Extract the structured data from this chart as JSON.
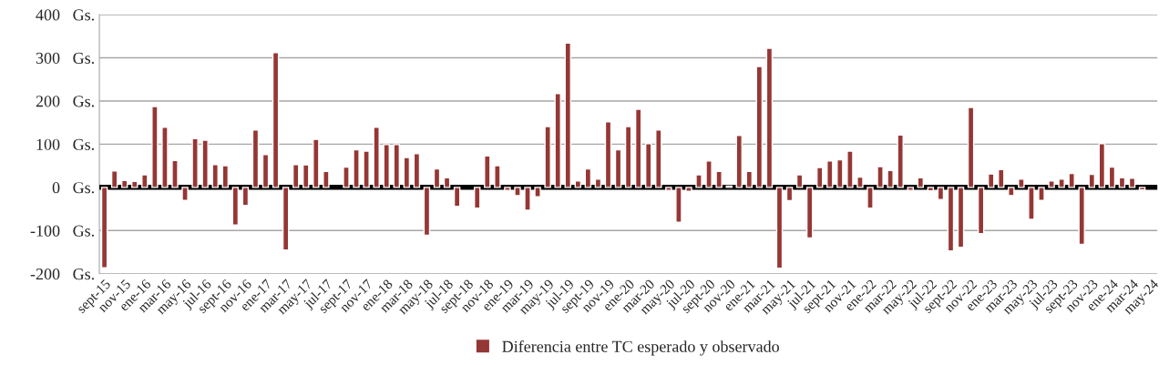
{
  "chart_data": {
    "type": "bar",
    "categories": [
      "sept-15",
      null,
      "nov-15",
      null,
      "ene-16",
      null,
      "mar-16",
      null,
      "may-16",
      null,
      "jul-16",
      null,
      "sept-16",
      null,
      "nov-16",
      null,
      "ene-17",
      null,
      "mar-17",
      null,
      "may-17",
      null,
      "jul-17",
      null,
      "sept-17",
      null,
      "nov-17",
      null,
      "ene-18",
      null,
      "mar-18",
      null,
      "may-18",
      null,
      "jul-18",
      null,
      "sept-18",
      null,
      "nov-18",
      null,
      "ene-19",
      null,
      "mar-19",
      null,
      "may-19",
      null,
      "jul-19",
      null,
      "sept-19",
      null,
      "nov-19",
      null,
      "ene-20",
      null,
      "mar-20",
      null,
      "may-20",
      null,
      "jul-20",
      null,
      "sept-20",
      null,
      "nov-20",
      null,
      "ene-21",
      null,
      "mar-21",
      null,
      "may-21",
      null,
      "jul-21",
      null,
      "sept-21",
      null,
      "nov-21",
      null,
      "ene-22",
      null,
      "mar-22",
      null,
      "may-22",
      null,
      "jul-22",
      null,
      "sept-22",
      null,
      "nov-22",
      null,
      "ene-23",
      null,
      "mar-23",
      null,
      "may-23",
      null,
      "jul-23",
      null,
      "sept-23",
      null,
      "nov-23",
      null,
      "ene-24",
      null,
      "mar-24",
      null,
      "may-24"
    ],
    "series": [
      {
        "name": "Diferencia entre TC esperado y observado",
        "color": "#953735",
        "values": [
          -186,
          38,
          16,
          14,
          29,
          187,
          139,
          62,
          -30,
          113,
          109,
          53,
          50,
          -87,
          -42,
          133,
          76,
          312,
          -145,
          53,
          52,
          111,
          37,
          null,
          47,
          87,
          84,
          139,
          99,
          99,
          69,
          78,
          -111,
          43,
          22,
          -44,
          null,
          -48,
          73,
          50,
          -7,
          -19,
          -53,
          -22,
          141,
          217,
          334,
          15,
          43,
          19,
          152,
          87,
          141,
          181,
          101,
          133,
          -7,
          -81,
          -9,
          29,
          61,
          37,
          3,
          120,
          37,
          280,
          322,
          -187,
          -31,
          29,
          -117,
          46,
          61,
          64,
          84,
          24,
          -48,
          48,
          39,
          121,
          -7,
          22,
          -8,
          -28,
          -147,
          -139,
          185,
          -107,
          31,
          41,
          -19,
          19,
          -74,
          -30,
          15,
          19,
          32,
          -132,
          30,
          101,
          47,
          22,
          21,
          -6,
          null
        ]
      }
    ],
    "ylim": [
      -200,
      400
    ],
    "yticks": [
      {
        "value": -200,
        "label": "-200   Gs."
      },
      {
        "value": -100,
        "label": "-100   Gs."
      },
      {
        "value": 0,
        "label": "0   Gs."
      },
      {
        "value": 100,
        "label": "100   Gs."
      },
      {
        "value": 200,
        "label": "200   Gs."
      },
      {
        "value": 300,
        "label": "300   Gs."
      },
      {
        "value": 400,
        "label": "400   Gs."
      }
    ],
    "grid": "y",
    "legend": "bottom"
  }
}
